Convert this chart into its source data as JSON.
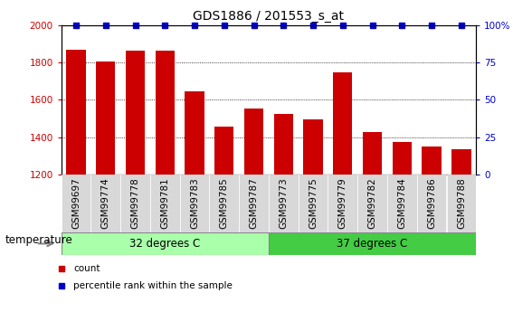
{
  "title": "GDS1886 / 201553_s_at",
  "categories": [
    "GSM99697",
    "GSM99774",
    "GSM99778",
    "GSM99781",
    "GSM99783",
    "GSM99785",
    "GSM99787",
    "GSM99773",
    "GSM99775",
    "GSM99779",
    "GSM99782",
    "GSM99784",
    "GSM99786",
    "GSM99788"
  ],
  "bar_values": [
    1870,
    1805,
    1865,
    1865,
    1645,
    1455,
    1555,
    1525,
    1495,
    1745,
    1430,
    1375,
    1350,
    1335
  ],
  "bar_color": "#cc0000",
  "percentile_color": "#0000cc",
  "ylim_left": [
    1200,
    2000
  ],
  "ylim_right": [
    0,
    100
  ],
  "yticks_left": [
    1200,
    1400,
    1600,
    1800,
    2000
  ],
  "yticks_right": [
    0,
    25,
    50,
    75,
    100
  ],
  "group1_label": "32 degrees C",
  "group2_label": "37 degrees C",
  "group1_count": 7,
  "group2_count": 7,
  "group1_color": "#aaffaa",
  "group2_color": "#44cc44",
  "xlabel_factor": "temperature",
  "legend_count_label": "count",
  "legend_pct_label": "percentile rank within the sample",
  "title_fontsize": 10,
  "tick_fontsize": 7.5,
  "axis_label_fontsize": 8.5,
  "group_label_fontsize": 8.5,
  "col_bg_color": "#d8d8d8",
  "plot_bg_color": "#ffffff"
}
